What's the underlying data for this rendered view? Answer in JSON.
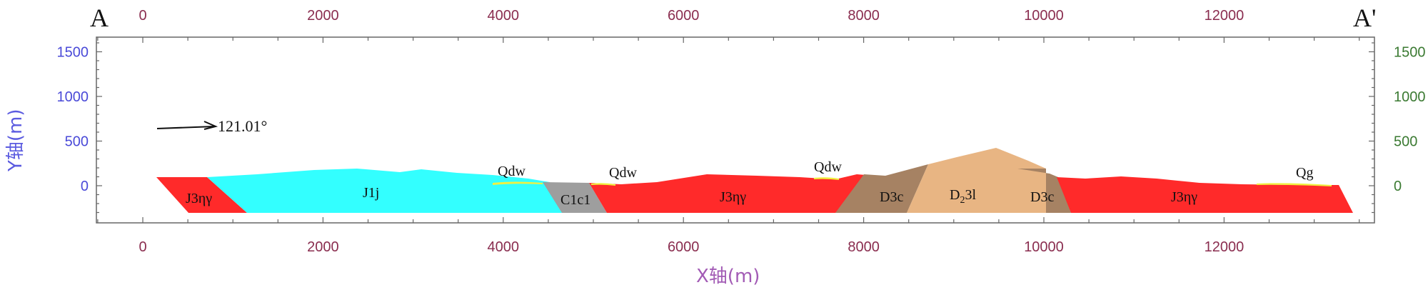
{
  "corner_labels": {
    "left": "A",
    "right": "A'"
  },
  "x_axis": {
    "label": "X轴(m)",
    "label_color": "#a25bb5",
    "tick_labels": [
      "0",
      "2000",
      "4000",
      "6000",
      "8000",
      "10000",
      "12000"
    ],
    "top_tick_labels": [
      "0",
      "2000",
      "4000",
      "6000",
      "8000",
      "10000",
      "12000"
    ],
    "range": [
      -500,
      13700
    ]
  },
  "y_axis": {
    "label": "Y轴(m)",
    "label_color": "#5b5be0",
    "tick_labels": [
      "0",
      "500",
      "1000",
      "1500"
    ],
    "right_tick_labels": [
      "0",
      "500",
      "1000",
      "1500"
    ],
    "range": [
      -440,
      1650
    ]
  },
  "direction_arrow": {
    "label": "121.01°"
  },
  "units": {
    "j3_left": "J3ηγ",
    "j1j": "J1j",
    "qdw_1": "Qdw",
    "c1c1": "C1c1",
    "qdw_2": "Qdw",
    "j3_mid": "J3ηγ",
    "qdw_3": "Qdw",
    "d3c_left": "D3c",
    "d23l_main": "D",
    "d23l_sub": "2",
    "d23l_tail": "3l",
    "d3c_right": "D3c",
    "j3_right": "J3ηγ",
    "qg": "Qg"
  },
  "colors": {
    "j3_granite": "#ff2a2a",
    "j1j": "#33ffff",
    "c1c1": "#9e9e9e",
    "d3c": "#a68263",
    "d23l": "#e8b583",
    "quaternary": "#f0f040",
    "axis": "#555555"
  }
}
